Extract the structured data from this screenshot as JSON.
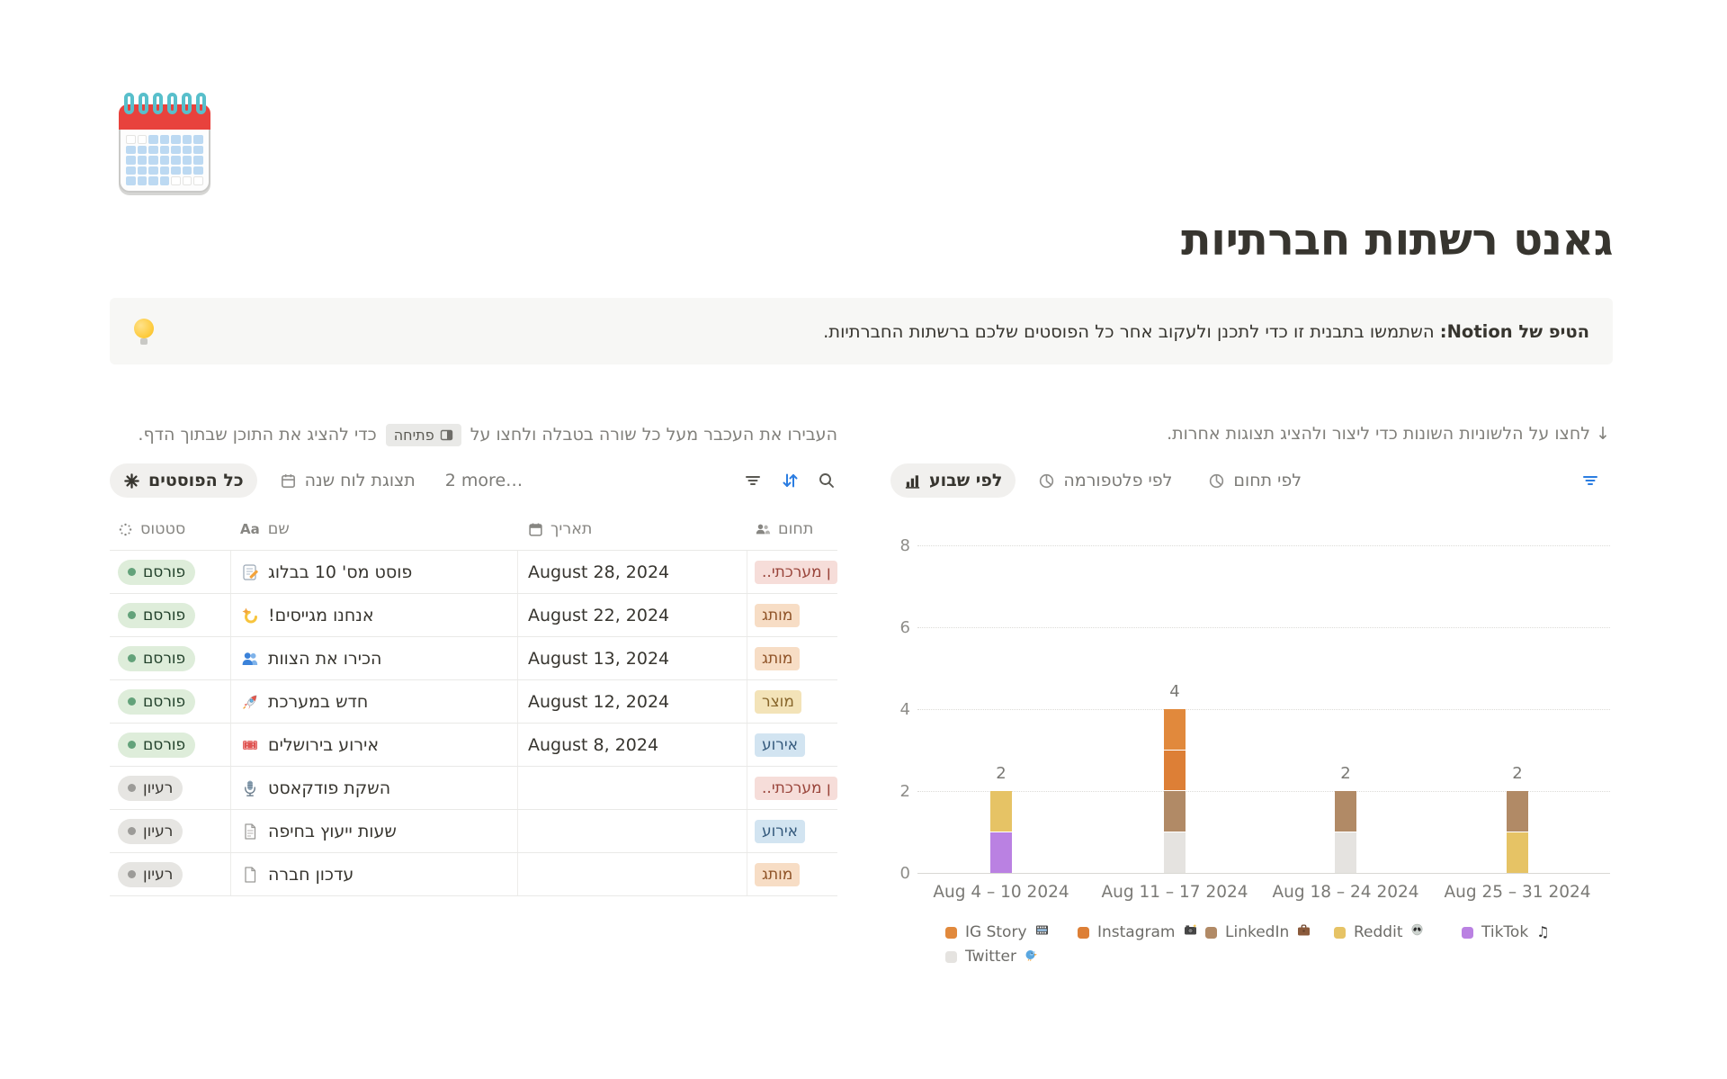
{
  "page": {
    "title": "גאנט רשתות חברתיות",
    "icon": "spiral-calendar-emoji"
  },
  "callout": {
    "icon": "light-bulb-emoji",
    "bold": "הטיפ של Notion:",
    "text": "השתמשו בתבנית זו כדי לתכנן ולעקוב אחר כל הפוסטים שלכם ברשתות החברתיות."
  },
  "left_panel": {
    "helper_before": "העבירו את העכבר מעל כל שורה בטבלה ולחצו על",
    "helper_badge": "פתיחה",
    "helper_after": "כדי להציג את התוכן שבתוך הדף.",
    "toolbar": {
      "active_tab": "כל הפוסטים",
      "calendar_tab": "תצוגת לוח שנה",
      "more_label": "2 more…",
      "icons": [
        "filter-icon",
        "sort-icon",
        "search-icon"
      ],
      "sort_active_color": "#2B7DE1"
    },
    "table": {
      "headers": {
        "status": "סטטוס",
        "name": "שם",
        "date": "תאריך",
        "domain": "תחום"
      },
      "rows": [
        {
          "status": "פורסם",
          "status_color": "green",
          "icon": "📝",
          "name": "פוסט מס' 10 בבלוג",
          "date": "August 28, 2024",
          "tag": "..ן מערכתי",
          "tag_color": "red"
        },
        {
          "status": "פורסם",
          "status_color": "green",
          "icon": "💫",
          "name": "אנחנו מגייסים!",
          "date": "August 22, 2024",
          "tag": "מותג",
          "tag_color": "orange"
        },
        {
          "status": "פורסם",
          "status_color": "green",
          "icon": "👥",
          "name": "הכירו את הצוות",
          "date": "August 13, 2024",
          "tag": "מותג",
          "tag_color": "orange"
        },
        {
          "status": "פורסם",
          "status_color": "green",
          "icon": "🚀",
          "name": "חדש במערכת",
          "date": "August 12, 2024",
          "tag": "מוצר",
          "tag_color": "yellow"
        },
        {
          "status": "פורסם",
          "status_color": "green",
          "icon": "🎟",
          "name": "אירוע בירושלים",
          "date": "August 8, 2024",
          "tag": "אירוע",
          "tag_color": "blue"
        },
        {
          "status": "רעיון",
          "status_color": "gray",
          "icon": "🎙",
          "name": "השקת פודקאסט",
          "date": "",
          "tag": "..ן מערכתי",
          "tag_color": "red"
        },
        {
          "status": "רעיון",
          "status_color": "gray",
          "icon": "page-with-lines",
          "name": "שעות ייעוץ בחיפה",
          "date": "",
          "tag": "אירוע",
          "tag_color": "blue"
        },
        {
          "status": "רעיון",
          "status_color": "gray",
          "icon": "blank-page",
          "name": "עדכון חברה",
          "date": "",
          "tag": "מותג",
          "tag_color": "orange"
        }
      ],
      "status_colors": {
        "green_bg": "#DEEDDA",
        "green_dot": "#63A27A",
        "gray_bg": "#E6E5E2",
        "gray_dot": "#9C9B98"
      },
      "tag_colors": {
        "red_bg": "#F6DDD9",
        "orange_bg": "#F7DDC5",
        "yellow_bg": "#F3E3B8",
        "blue_bg": "#D2E4F1"
      }
    }
  },
  "right_panel": {
    "helper": "↓ לחצו על הלשוניות השונות כדי ליצור ולהציג תצוגות אחרות.",
    "toolbar": {
      "active_tab": "לפי שבוע",
      "tab_platform": "לפי פלטפורמה",
      "tab_domain": "לפי תחום",
      "filter_icon_color": "#2B7DE1"
    }
  },
  "chart_data": {
    "type": "bar",
    "subtype": "stacked",
    "title": "",
    "xlabel": "",
    "ylabel": "",
    "categories": [
      "Aug 4 – 10 2024",
      "Aug 11 – 17 2024",
      "Aug 18 – 24 2024",
      "Aug 25 – 31 2024"
    ],
    "series": [
      {
        "name": "IG Story",
        "emoji": "🎞",
        "color": "#E1893C",
        "values": [
          0,
          1,
          0,
          0
        ]
      },
      {
        "name": "Instagram",
        "emoji": "📸",
        "color": "#DD7F36",
        "values": [
          0,
          1,
          0,
          0
        ]
      },
      {
        "name": "LinkedIn",
        "emoji": "💼",
        "color": "#B18A66",
        "values": [
          0,
          1,
          1,
          1
        ]
      },
      {
        "name": "Reddit",
        "emoji": "👽",
        "color": "#E6C365",
        "values": [
          1,
          0,
          0,
          1
        ]
      },
      {
        "name": "TikTok",
        "emoji": "🎵",
        "color": "#BA81E2",
        "values": [
          1,
          0,
          0,
          0
        ]
      },
      {
        "name": "Twitter",
        "emoji": "🐦",
        "color": "#E5E3E0",
        "values": [
          0,
          1,
          1,
          0
        ]
      }
    ],
    "stack_order_bottom_to_top": [
      "Twitter",
      "TikTok",
      "Reddit",
      "LinkedIn",
      "Instagram",
      "IG Story"
    ],
    "totals": [
      2,
      4,
      2,
      2
    ],
    "y_ticks": [
      0,
      2,
      4,
      6,
      8
    ],
    "ylim": [
      0,
      8
    ],
    "grid": "dotted-horizontal",
    "legend_position": "bottom"
  }
}
